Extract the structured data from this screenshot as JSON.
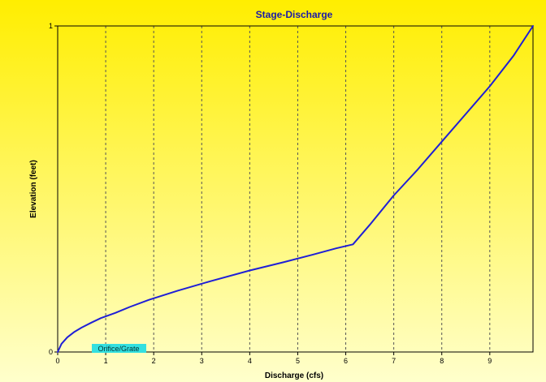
{
  "chart_data": {
    "type": "line",
    "title": "Stage-Discharge",
    "xlabel": "Discharge  (cfs)",
    "ylabel": "Elevation  (feet)",
    "xlim": [
      0,
      9.9
    ],
    "ylim": [
      0,
      1
    ],
    "x_ticks": [
      0,
      1,
      2,
      3,
      4,
      5,
      6,
      7,
      8,
      9
    ],
    "y_ticks": [
      0,
      1
    ],
    "grid": "vertical dashed",
    "legend": "bottom-left",
    "series": [
      {
        "name": "Orifice/Grate",
        "color": "#1f1fd6",
        "x": [
          0,
          0.08,
          0.2,
          0.35,
          0.5,
          0.7,
          0.9,
          1.2,
          1.5,
          1.9,
          2.5,
          3.2,
          4.0,
          4.7,
          5.3,
          5.8,
          6.15,
          6.5,
          7.0,
          7.5,
          8.0,
          8.5,
          9.0,
          9.5,
          9.9
        ],
        "y": [
          0,
          0.025,
          0.045,
          0.062,
          0.075,
          0.09,
          0.104,
          0.12,
          0.138,
          0.16,
          0.188,
          0.218,
          0.25,
          0.275,
          0.298,
          0.318,
          0.33,
          0.39,
          0.48,
          0.56,
          0.645,
          0.73,
          0.815,
          0.91,
          1.0
        ]
      }
    ],
    "colors": {
      "background_top": "#ffee00",
      "background_bottom": "#ffffcc",
      "line": "#1f1fd6",
      "title": "#1a1aa8",
      "legend_bg": "#33e0e0"
    }
  }
}
